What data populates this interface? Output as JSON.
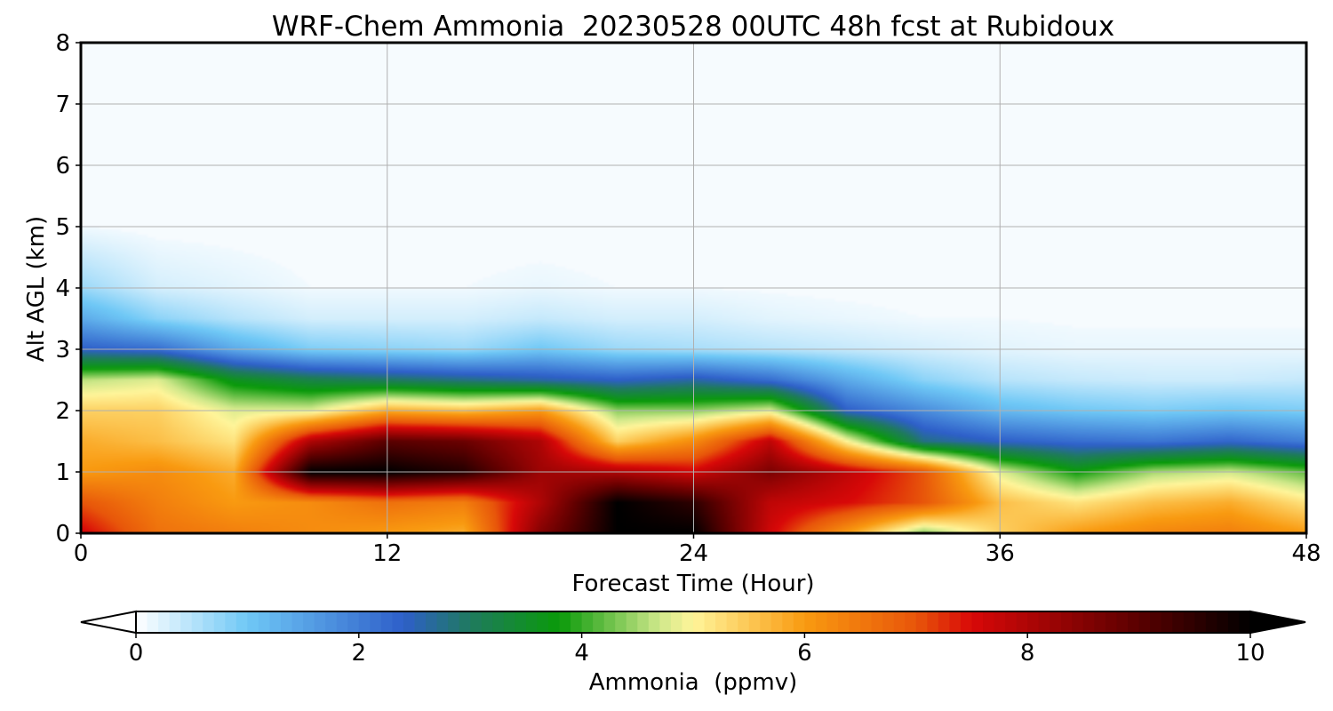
{
  "chart_data": {
    "type": "heatmap",
    "title": "WRF-Chem Ammonia  20230528 00UTC 48h fcst at Rubidoux",
    "xlabel": "Forecast Time (Hour)",
    "ylabel": "Alt AGL (km)",
    "xlim": [
      0,
      48
    ],
    "ylim": [
      0,
      8
    ],
    "x_ticks": [
      0,
      12,
      24,
      36,
      48
    ],
    "y_ticks": [
      0,
      1,
      2,
      3,
      4,
      5,
      6,
      7,
      8
    ],
    "grid": true,
    "colorbar": {
      "label": "Ammonia  (ppmv)",
      "min": 0,
      "max": 10,
      "ticks": [
        0,
        2,
        4,
        6,
        8,
        10
      ],
      "extend": "both",
      "placement": "bottom",
      "stops": [
        {
          "value": 0,
          "color": "#ffffff"
        },
        {
          "value": 1,
          "color": "#6fc8f6"
        },
        {
          "value": 2.4,
          "color": "#2e5fc9"
        },
        {
          "value": 3,
          "color": "#1f7a5e"
        },
        {
          "value": 3.8,
          "color": "#0a9a0a"
        },
        {
          "value": 4.7,
          "color": "#cfe88a"
        },
        {
          "value": 5,
          "color": "#fff59a"
        },
        {
          "value": 6,
          "color": "#f99a10"
        },
        {
          "value": 7,
          "color": "#e8560a"
        },
        {
          "value": 7.5,
          "color": "#d80808"
        },
        {
          "value": 9,
          "color": "#5a0000"
        },
        {
          "value": 10,
          "color": "#000000"
        }
      ]
    },
    "field": {
      "description_of_estimate": "",
      "times": [
        0,
        3,
        6,
        9,
        12,
        15,
        18,
        21,
        24,
        27,
        30,
        33,
        36,
        39,
        42,
        45,
        48
      ],
      "heights_km": [
        0,
        0.5,
        1.0,
        1.5,
        2.0,
        2.5,
        3.0,
        3.5,
        4.0,
        5.0,
        6.0,
        8.0
      ],
      "values": [
        [
          7.6,
          6.6,
          6.4,
          6.2,
          6.0,
          5.8,
          8.5,
          10.0,
          10.0,
          7.6,
          6.0,
          4.3,
          5.4,
          6.0,
          6.3,
          6.4,
          6.0
        ],
        [
          7.0,
          6.4,
          6.0,
          6.2,
          6.6,
          6.4,
          8.0,
          10.0,
          9.5,
          7.8,
          7.5,
          7.0,
          5.6,
          5.2,
          5.6,
          5.8,
          5.2
        ],
        [
          6.0,
          6.2,
          5.8,
          10.0,
          10.0,
          9.6,
          8.2,
          8.0,
          7.6,
          8.6,
          7.8,
          7.0,
          4.8,
          3.8,
          4.5,
          4.7,
          4.2
        ],
        [
          5.8,
          5.6,
          5.2,
          8.0,
          9.0,
          8.8,
          8.0,
          5.4,
          6.2,
          7.8,
          5.0,
          2.8,
          2.4,
          2.2,
          2.1,
          2.3,
          2.0
        ],
        [
          5.4,
          5.4,
          4.8,
          4.8,
          5.8,
          5.6,
          6.0,
          4.4,
          4.4,
          4.8,
          2.4,
          1.8,
          1.2,
          1.0,
          0.9,
          1.0,
          0.9
        ],
        [
          4.6,
          4.8,
          3.6,
          3.2,
          3.0,
          2.8,
          2.6,
          2.4,
          2.6,
          2.2,
          1.4,
          0.8,
          0.5,
          0.4,
          0.35,
          0.35,
          0.4
        ],
        [
          2.4,
          2.2,
          1.4,
          0.9,
          0.8,
          0.7,
          1.0,
          0.7,
          0.6,
          0.5,
          0.4,
          0.3,
          0.2,
          0.15,
          0.15,
          0.15,
          0.15
        ],
        [
          1.4,
          0.8,
          0.5,
          0.3,
          0.3,
          0.3,
          0.4,
          0.3,
          0.3,
          0.2,
          0.15,
          0.1,
          0.1,
          0.08,
          0.08,
          0.08,
          0.08
        ],
        [
          0.7,
          0.3,
          0.2,
          0.1,
          0.1,
          0.1,
          0.15,
          0.1,
          0.1,
          0.08,
          0.06,
          0.05,
          0.05,
          0.04,
          0.04,
          0.04,
          0.04
        ],
        [
          0.1,
          0.05,
          0.04,
          0.03,
          0.03,
          0.03,
          0.03,
          0.03,
          0.03,
          0.02,
          0.02,
          0.02,
          0.02,
          0.02,
          0.02,
          0.02,
          0.02
        ],
        [
          0.05,
          0.03,
          0.02,
          0.02,
          0.02,
          0.02,
          0.02,
          0.02,
          0.02,
          0.02,
          0.02,
          0.02,
          0.02,
          0.02,
          0.02,
          0.02,
          0.02
        ],
        [
          0.03,
          0.02,
          0.02,
          0.02,
          0.02,
          0.02,
          0.02,
          0.02,
          0.02,
          0.02,
          0.02,
          0.02,
          0.02,
          0.02,
          0.02,
          0.02,
          0.02
        ]
      ]
    }
  }
}
